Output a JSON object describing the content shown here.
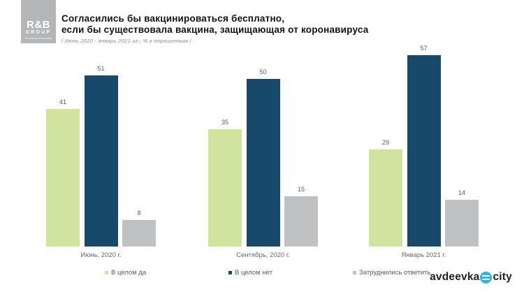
{
  "header": {
    "logo": {
      "line1": "R&B",
      "line2": "GROUP",
      "line3": "Research & Branding"
    },
    "title_line1": "Согласились бы вакцинироваться бесплатно,",
    "title_line2": "если бы существовала вакцина, защищающая от коронавируса",
    "subtitle": "/ Июнь 2020 - январь 2021 гг.; % к опрошенным /"
  },
  "chart_data": {
    "type": "bar",
    "title": "Согласились бы вакцинироваться бесплатно, если бы существовала вакцина, защищающая от коронавируса",
    "subtitle": "/ Июнь 2020 - январь 2021 гг.; % к опрошенным /",
    "categories": [
      "Июнь, 2020 г.",
      "Сентябрь, 2020 г.",
      "Январь 2021 г."
    ],
    "series": [
      {
        "name": "В целом да",
        "color": "#cfe49d",
        "values": [
          41,
          35,
          29
        ]
      },
      {
        "name": "В целом нет",
        "color": "#17496b",
        "values": [
          51,
          50,
          57
        ]
      },
      {
        "name": "Затруднились ответить",
        "color": "#bfc1c3",
        "values": [
          8,
          15,
          14
        ]
      }
    ],
    "ylim": [
      0,
      60
    ],
    "grid": false,
    "axis_lines": false,
    "value_labels": true,
    "legend_position": "bottom"
  },
  "footer": {
    "brand_left": "avdeevka",
    "brand_right": "city",
    "brand_icon": "globe-icon",
    "brand_icon_color": "#29b5ea"
  }
}
